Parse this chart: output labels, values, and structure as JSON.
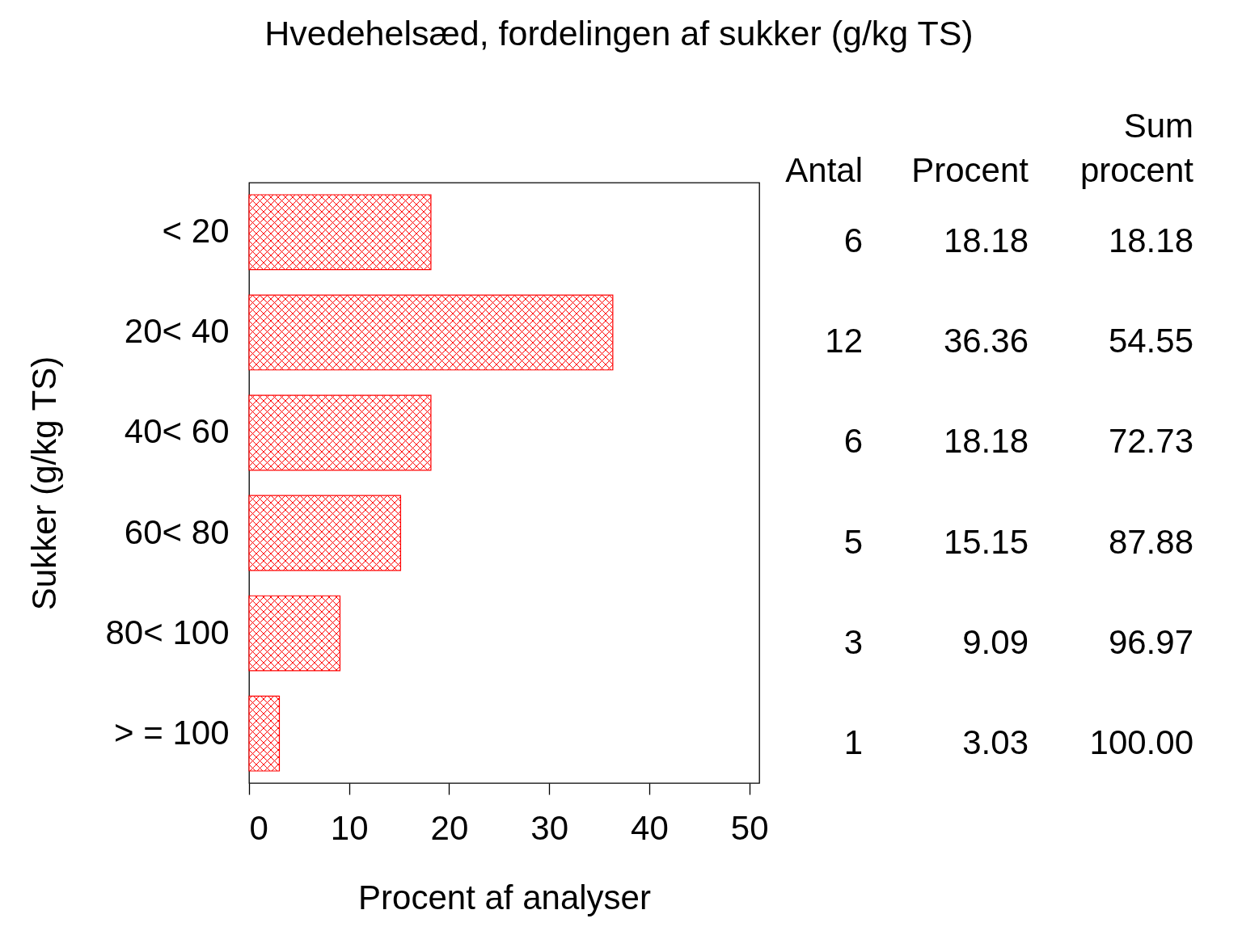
{
  "chart_data": {
    "type": "bar",
    "orientation": "horizontal",
    "title": "Hvedehelsæd, fordelingen af sukker (g/kg TS)",
    "xlabel": "Procent af analyser",
    "ylabel": "Sukker (g/kg TS)",
    "categories": [
      "< 20",
      "20< 40",
      "40< 60",
      "60< 80",
      "80< 100",
      "> = 100"
    ],
    "values": [
      18.18,
      36.36,
      18.18,
      15.15,
      9.09,
      3.03
    ],
    "color": "#ff0000",
    "xlim": [
      0,
      51
    ],
    "xticks": [
      0,
      10,
      20,
      30,
      40,
      50
    ],
    "data_labels": true,
    "annotations": [
      "Antal",
      "Procent",
      "Sum procent",
      "6",
      "18.18",
      "12",
      "54.55",
      "6",
      "72.73",
      "5",
      "87.88",
      "3",
      "96.97",
      "1",
      "100.00"
    ]
  }
}
